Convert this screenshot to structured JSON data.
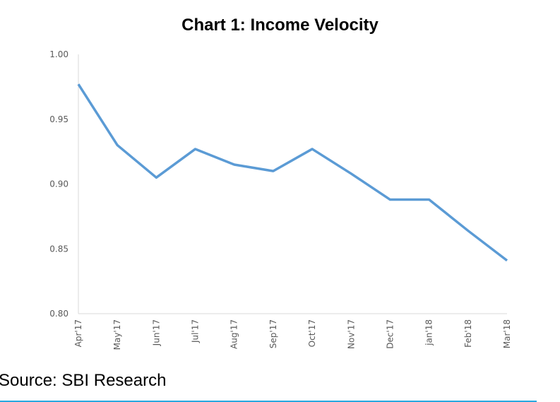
{
  "chart_data": {
    "type": "line",
    "title": "Chart 1: Income Velocity",
    "xlabel": "",
    "ylabel": "",
    "categories": [
      "Apr'17",
      "May'17",
      "Jun'17",
      "Jul'17",
      "Aug'17",
      "Sep'17",
      "Oct'17",
      "Nov'17",
      "Dec'17",
      "jan'18",
      "Feb'18",
      "Mar'18"
    ],
    "series": [
      {
        "name": "Income Velocity",
        "values": [
          0.977,
          0.93,
          0.905,
          0.927,
          0.915,
          0.91,
          0.927,
          0.908,
          0.888,
          0.888,
          0.864,
          0.841
        ],
        "color": "#5b9bd5"
      }
    ],
    "ylim": [
      0.8,
      1.0
    ],
    "yticks": [
      "0.80",
      "0.85",
      "0.90",
      "0.95",
      "1.00"
    ],
    "grid": false,
    "legend": "none"
  },
  "source": "Source: SBI Research"
}
